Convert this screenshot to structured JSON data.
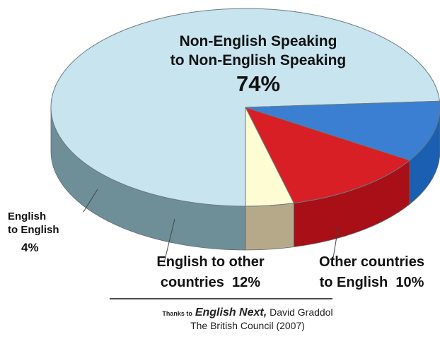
{
  "chart_data": {
    "type": "pie",
    "slices": [
      {
        "key": "nn",
        "values": 74,
        "color": "#c7e4ef",
        "side_color": "#6f8f98"
      },
      {
        "key": "oe",
        "values": 10,
        "color": "#3a7fd2",
        "side_color": "#1a5fb2"
      },
      {
        "key": "eo",
        "values": 12,
        "color": "#d81f26",
        "side_color": "#a80f17"
      },
      {
        "key": "ee",
        "values": 4,
        "color": "#fdfcd2",
        "side_color": "#b6a98a"
      }
    ],
    "labels": {
      "nn": {
        "line1": "Non-English Speaking",
        "line2": "to Non-English Speaking",
        "pct": "74%"
      },
      "ee": {
        "line1": "English",
        "line2": "to English",
        "pct": "4%"
      },
      "eo": {
        "line1": "English to other",
        "line2": "countries  12%"
      },
      "oe": {
        "line1": "Other countries",
        "line2": "to English  10%"
      }
    }
  },
  "credit": {
    "thanks": "Thanks to",
    "book": "English Next,",
    "author": "David Graddol",
    "publisher": "The British Council (2007)"
  }
}
